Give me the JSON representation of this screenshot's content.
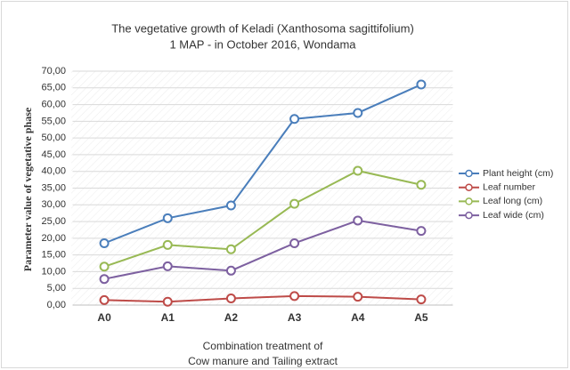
{
  "chart_data": {
    "type": "line",
    "title": [
      "The vegetative growth of Keladi (Xanthosoma sagittifolium)",
      "1 MAP - in October 2016, Wondama"
    ],
    "ylabel": "Parameter value of vegetative phase",
    "xlabel": [
      "Combination treatment of",
      "Cow manure and Tailing extract"
    ],
    "categories": [
      "A0",
      "A1",
      "A2",
      "A3",
      "A4",
      "A5"
    ],
    "series": [
      {
        "name": "Plant height (cm)",
        "color": "#4a7ebb",
        "values": [
          18.5,
          26,
          29.8,
          55.7,
          57.5,
          66
        ]
      },
      {
        "name": "Leaf number",
        "color": "#be4b48",
        "values": [
          1.5,
          1.0,
          2.0,
          2.7,
          2.5,
          1.7
        ]
      },
      {
        "name": "Leaf long (cm)",
        "color": "#98b954",
        "values": [
          11.5,
          18,
          16.7,
          30.3,
          40.2,
          36
        ]
      },
      {
        "name": "Leaf wide (cm)",
        "color": "#7d60a0",
        "values": [
          7.8,
          11.6,
          10.3,
          18.5,
          25.3,
          22.2
        ]
      }
    ],
    "ylim": [
      0,
      70
    ],
    "yticks": [
      {
        "value": 0,
        "label": "0,00"
      },
      {
        "value": 5,
        "label": "5,00"
      },
      {
        "value": 10,
        "label": "10,00"
      },
      {
        "value": 15,
        "label": "15,00"
      },
      {
        "value": 20,
        "label": "20,00"
      },
      {
        "value": 25,
        "label": "25,00"
      },
      {
        "value": 30,
        "label": "30,00"
      },
      {
        "value": 35,
        "label": "35,00"
      },
      {
        "value": 40,
        "label": "40,00"
      },
      {
        "value": 45,
        "label": "45,00"
      },
      {
        "value": 50,
        "label": "50,00"
      },
      {
        "value": 55,
        "label": "55,00"
      },
      {
        "value": 60,
        "label": "60,00"
      },
      {
        "value": 65,
        "label": "65,00"
      },
      {
        "value": 70,
        "label": "70,00"
      }
    ],
    "grid": true,
    "legend": "right"
  }
}
